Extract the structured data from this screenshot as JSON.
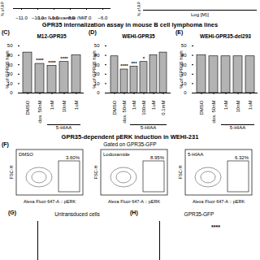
{
  "top_strip": [
    {
      "x_label": "Log [Lodoxamide (M)]",
      "y_label": "% of AP",
      "xlim": [
        -11.5,
        -5.5
      ],
      "xticks": [
        -11,
        -10,
        -9,
        -8,
        -7,
        -6
      ]
    },
    {
      "x_label": "Log [M)]",
      "y_label": "% of AP"
    }
  ],
  "section_1": "GPR35 internalization assay in mouse B cell lymphoma lines",
  "chart_data": [
    {
      "type": "bar",
      "panel": "(C)",
      "title": "M12-GPR35",
      "y_label": "% of GPR35 high",
      "categories": [
        "DMSO",
        "Lodox. 50nM",
        "1nM",
        "10nM",
        "1uM"
      ],
      "values": [
        43,
        31,
        29,
        33,
        40
      ],
      "significance": [
        null,
        "****",
        "****",
        "****",
        null
      ],
      "group": {
        "label": "5-HIAA",
        "categories": [
          "1nM",
          "10nM",
          "1uM"
        ]
      },
      "color": "#b3b3b3",
      "ylim": [
        0,
        50
      ],
      "yticks": [
        0,
        10,
        20,
        30,
        40,
        50
      ]
    },
    {
      "type": "bar",
      "panel": "(D)",
      "title": "WEHI-GPR35",
      "y_label": "% of GPR35 high",
      "categories": [
        "DMSO",
        "Lodox. 50nM",
        "1nM",
        "100nM",
        "1uM",
        "0.1mM"
      ],
      "values": [
        39,
        25,
        28,
        33,
        40,
        43
      ],
      "significance": [
        null,
        "****",
        "***",
        "*",
        null,
        null
      ],
      "group": {
        "label": "5-HIAA",
        "categories": [
          "1nM",
          "100nM",
          "1uM",
          "0.1mM"
        ]
      },
      "color": "#b3b3b3",
      "ylim": [
        0,
        50
      ],
      "yticks": [
        0,
        10,
        20,
        30,
        40,
        50
      ]
    },
    {
      "type": "bar",
      "panel": "(E)",
      "title": "WEHI-GPR35-del293",
      "y_label": "% of GPR35 high",
      "categories": [
        "DMSO",
        "Lodox. 50nM",
        "1nM",
        "10nM",
        "1uM"
      ],
      "values": [
        40,
        39,
        39,
        39,
        39
      ],
      "group": {
        "label": "5-HIAA",
        "categories": [
          "1nM",
          "10nM",
          "1uM"
        ]
      },
      "color": "#b3b3b3",
      "ylim": [
        0,
        50
      ],
      "yticks": [
        0,
        10,
        20,
        30,
        40,
        50
      ]
    }
  ],
  "section_2": "GPR35-dependent pERK induction in WEHI-231",
  "flow": {
    "panel": "(F)",
    "title": "Gated on GPR35-GFP",
    "x_label": "Alexa Fluor 647-A :: pERK",
    "y_label": "FSC-H",
    "plots": [
      {
        "label": "DMSO",
        "gate_label": "3.60%"
      },
      {
        "label": "Lodoxamide",
        "gate_label": "8.95%"
      },
      {
        "label": "5-HIAA",
        "gate_label": "6.32%"
      }
    ]
  },
  "bottom": [
    {
      "panel": "(G)",
      "title": "Untransduced cells"
    },
    {
      "panel": "(H)",
      "title": "GPR35-GFP",
      "annotation": "****"
    }
  ]
}
